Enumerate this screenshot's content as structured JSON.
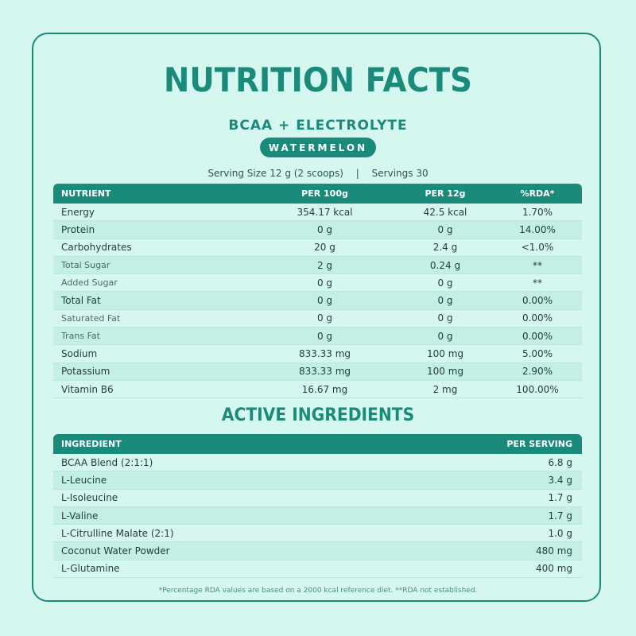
{
  "title": "NUTRITION FACTS",
  "product": "BCAA + ELECTROLYTE",
  "flavor": "WATERMELON",
  "serving": {
    "size_label": "Serving Size",
    "size_value": "12 g (2 scoops)",
    "separator": "|",
    "servings_label": "Servings",
    "servings_value": "30"
  },
  "nutrition": {
    "headers": [
      "NUTRIENT",
      "PER 100g",
      "PER 12g",
      "%RDA*"
    ],
    "rows": [
      {
        "name": "Energy",
        "per100": "354.17 kcal",
        "per12": "42.5 kcal",
        "rda": "1.70%"
      },
      {
        "name": "Protein",
        "per100": "0 g",
        "per12": "0 g",
        "rda": "14.00%"
      },
      {
        "name": "Carbohydrates",
        "per100": "20 g",
        "per12": "2.4 g",
        "rda": "<1.0%"
      },
      {
        "name": "Total Sugar",
        "per100": "2 g",
        "per12": "0.24 g",
        "rda": "**"
      },
      {
        "name": "Added Sugar",
        "per100": "0 g",
        "per12": "0 g",
        "rda": "**"
      },
      {
        "name": "Total Fat",
        "per100": "0 g",
        "per12": "0 g",
        "rda": "0.00%"
      },
      {
        "name": "Saturated Fat",
        "per100": "0 g",
        "per12": "0 g",
        "rda": "0.00%"
      },
      {
        "name": "Trans Fat",
        "per100": "0 g",
        "per12": "0 g",
        "rda": "0.00%"
      },
      {
        "name": "Sodium",
        "per100": "833.33 mg",
        "per12": "100 mg",
        "rda": "5.00%"
      },
      {
        "name": "Potassium",
        "per100": "833.33 mg",
        "per12": "100 mg",
        "rda": "2.90%"
      },
      {
        "name": "Vitamin B6",
        "per100": "16.67 mg",
        "per12": "2 mg",
        "rda": "100.00%"
      }
    ]
  },
  "active": {
    "title": "ACTIVE INGREDIENTS",
    "headers": [
      "INGREDIENT",
      "PER SERVING"
    ],
    "rows": [
      {
        "name": "BCAA Blend (2:1:1)",
        "value": "6.8 g"
      },
      {
        "name": "L-Leucine",
        "value": "3.4 g"
      },
      {
        "name": "L-Isoleucine",
        "value": "1.7 g"
      },
      {
        "name": "L-Valine",
        "value": "1.7 g"
      },
      {
        "name": "L-Citrulline Malate (2:1)",
        "value": "1.0 g"
      },
      {
        "name": "Coconut Water Powder",
        "value": "480 mg"
      },
      {
        "name": "L-Glutamine",
        "value": "400 mg"
      }
    ]
  },
  "footnote": "*Percentage RDA values are based on a 2000 kcal reference diet.  **RDA not established."
}
